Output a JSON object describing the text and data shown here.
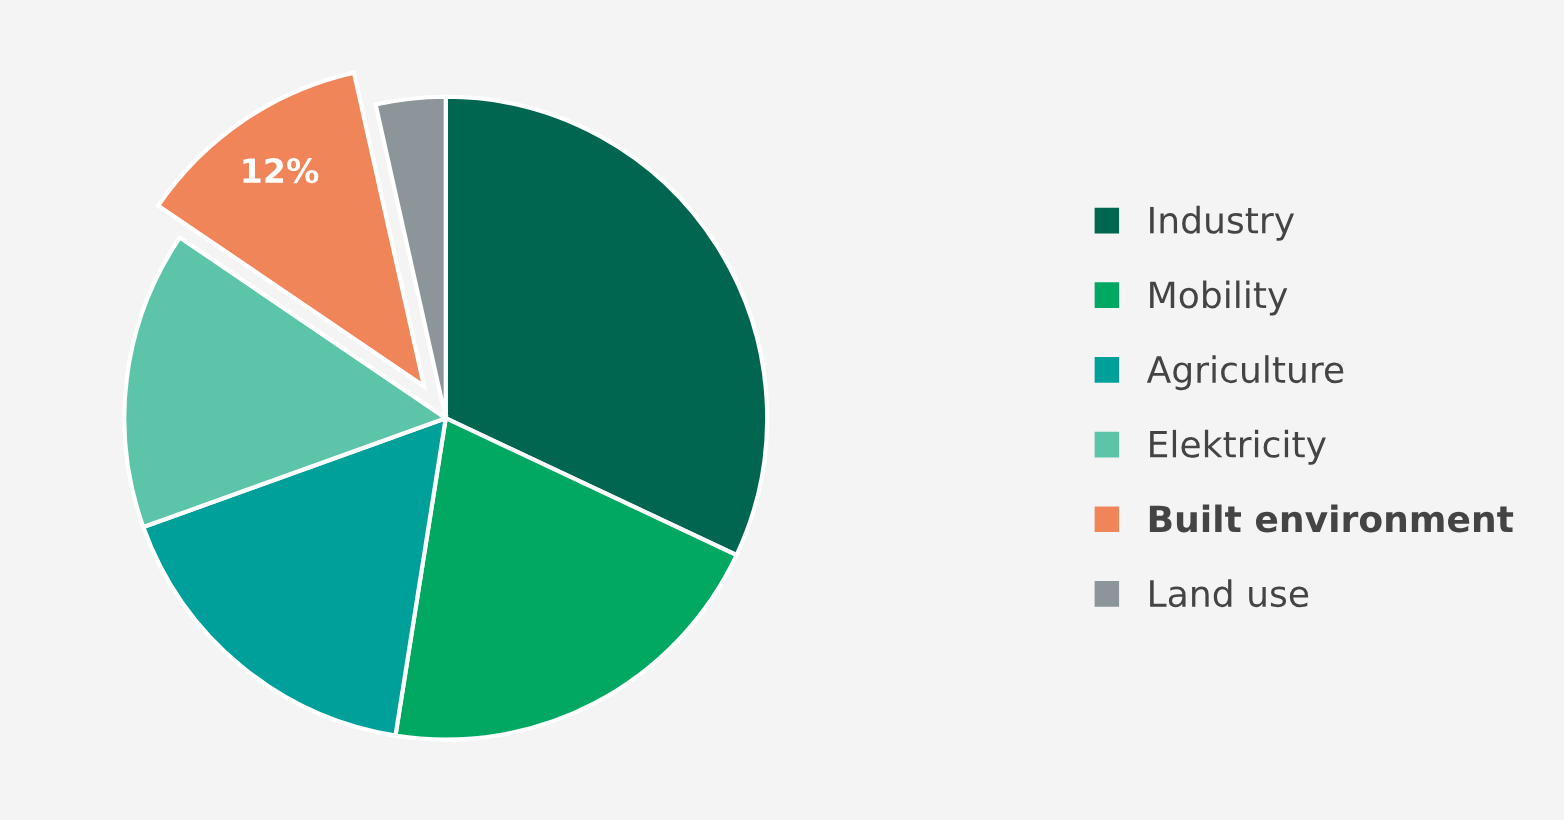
{
  "chart_data": {
    "type": "pie",
    "categories": [
      "Industry",
      "Mobility",
      "Agriculture",
      "Elektricity",
      "Built environment",
      "Land use"
    ],
    "values": [
      32,
      20.5,
      17,
      15,
      12,
      3.5
    ],
    "colors": [
      "#00664f",
      "#00a862",
      "#00a09a",
      "#5cc4a8",
      "#f0855a",
      "#8c9599"
    ],
    "value_labels": [
      null,
      null,
      null,
      null,
      "12%",
      null
    ],
    "legend": "right"
  }
}
